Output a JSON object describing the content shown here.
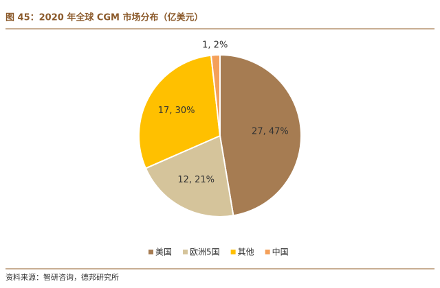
{
  "chart_data": {
    "type": "pie",
    "title": "图 45：2020 年全球 CGM 市场分布（亿美元）",
    "categories": [
      "美国",
      "欧洲5国",
      "其他",
      "中国"
    ],
    "values": [
      27,
      12,
      17,
      1
    ],
    "value_labels": [
      "27, 47%",
      "12, 21%",
      "17, 30%",
      "1, 2%"
    ],
    "colors": [
      "#a67c52",
      "#d5c49b",
      "#ffc000",
      "#f4a05a"
    ],
    "legend": "bottom",
    "source": "资料来源：智研咨询，德邦研究所"
  }
}
